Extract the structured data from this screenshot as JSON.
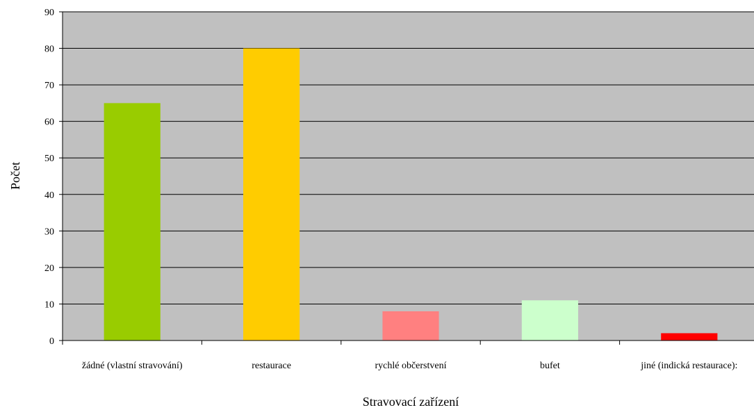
{
  "chart_data": {
    "type": "bar",
    "title": "",
    "xlabel": "Stravovací zařízení",
    "ylabel": "Počet",
    "ylim": [
      0,
      90
    ],
    "ytick_step": 10,
    "grid": true,
    "legend": "none",
    "plot_background": "#c0c0c0",
    "categories": [
      "žádné (vlastní stravování)",
      "restaurace",
      "rychlé občerstvení",
      "bufet",
      "jiné (indická restaurace):"
    ],
    "values": [
      65,
      80,
      8,
      11,
      2
    ],
    "colors": [
      "#99cc00",
      "#ffcc00",
      "#ff8080",
      "#ccffcc",
      "#ff0000"
    ]
  }
}
